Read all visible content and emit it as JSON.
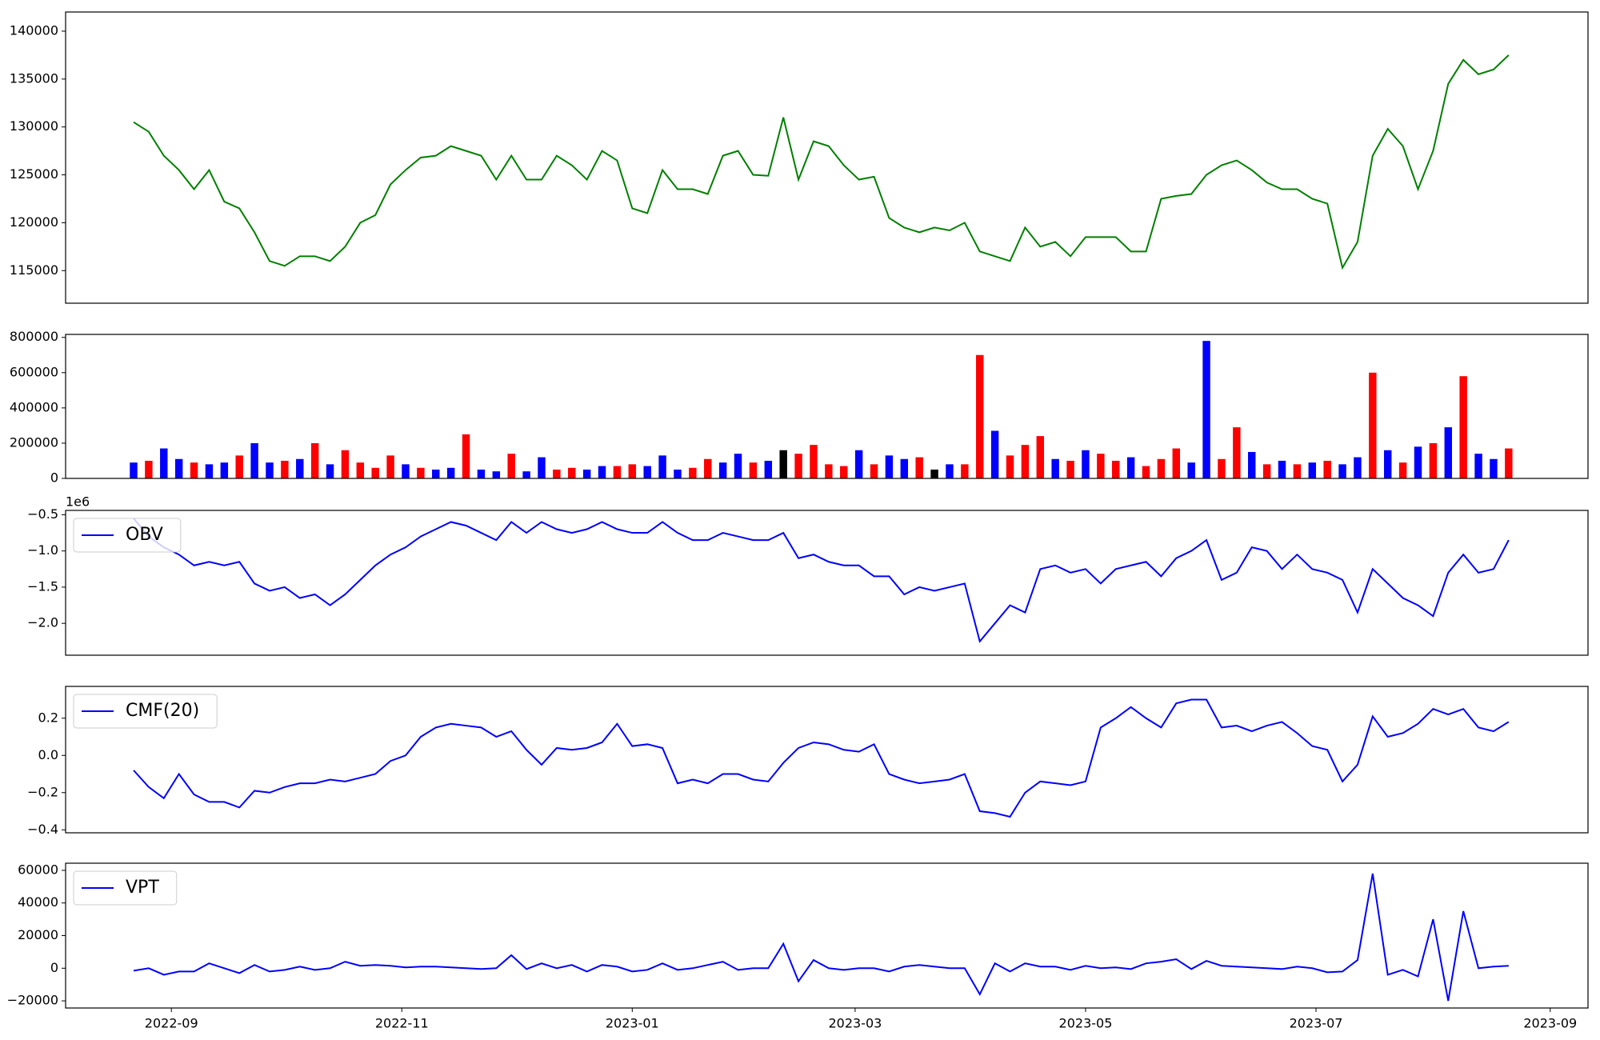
{
  "chart_data": [
    {
      "type": "line",
      "x": [
        "2022-08-22",
        "2022-08-26",
        "2022-08-30",
        "2022-09-03",
        "2022-09-07",
        "2022-09-11",
        "2022-09-15",
        "2022-09-19",
        "2022-09-23",
        "2022-09-27",
        "2022-10-01",
        "2022-10-05",
        "2022-10-09",
        "2022-10-13",
        "2022-10-17",
        "2022-10-21",
        "2022-10-25",
        "2022-10-29",
        "2022-11-02",
        "2022-11-06",
        "2022-11-10",
        "2022-11-14",
        "2022-11-18",
        "2022-11-22",
        "2022-11-26",
        "2022-11-30",
        "2022-12-04",
        "2022-12-08",
        "2022-12-12",
        "2022-12-16",
        "2022-12-20",
        "2022-12-24",
        "2022-12-28",
        "2023-01-01",
        "2023-01-05",
        "2023-01-09",
        "2023-01-13",
        "2023-01-17",
        "2023-01-21",
        "2023-01-25",
        "2023-01-29",
        "2023-02-02",
        "2023-02-06",
        "2023-02-10",
        "2023-02-14",
        "2023-02-18",
        "2023-02-22",
        "2023-02-26",
        "2023-03-02",
        "2023-03-06",
        "2023-03-10",
        "2023-03-14",
        "2023-03-18",
        "2023-03-22",
        "2023-03-26",
        "2023-03-30",
        "2023-04-03",
        "2023-04-07",
        "2023-04-11",
        "2023-04-15",
        "2023-04-19",
        "2023-04-23",
        "2023-04-27",
        "2023-05-01",
        "2023-05-05",
        "2023-05-09",
        "2023-05-13",
        "2023-05-17",
        "2023-05-21",
        "2023-05-25",
        "2023-05-29",
        "2023-06-02",
        "2023-06-06",
        "2023-06-10",
        "2023-06-14",
        "2023-06-18",
        "2023-06-22",
        "2023-06-26",
        "2023-06-30",
        "2023-07-04",
        "2023-07-08",
        "2023-07-12",
        "2023-07-16",
        "2023-07-20",
        "2023-07-24",
        "2023-07-28",
        "2023-08-01",
        "2023-08-05",
        "2023-08-09",
        "2023-08-13",
        "2023-08-17",
        "2023-08-21"
      ],
      "xlim": [
        "2022-08-04",
        "2023-09-11"
      ],
      "series": [
        {
          "color": "green",
          "values": [
            130500,
            129500,
            127000,
            125500,
            123500,
            125500,
            122200,
            121500,
            119000,
            116000,
            115500,
            116500,
            116500,
            116000,
            117500,
            120000,
            120800,
            124000,
            125500,
            126800,
            127000,
            128000,
            127500,
            127000,
            124500,
            127000,
            124500,
            124500,
            127000,
            126000,
            124500,
            127500,
            126500,
            121500,
            121000,
            125500,
            123500,
            123500,
            123000,
            127000,
            127500,
            125000,
            124900,
            131000,
            124500,
            128500,
            128000,
            126000,
            124500,
            124800,
            120500,
            119500,
            119000,
            119500,
            119200,
            120000,
            117000,
            116500,
            116000,
            119500,
            117500,
            118000,
            116500,
            118500,
            118500,
            118500,
            117000,
            117000,
            122500,
            122800,
            123000,
            125000,
            126000,
            126500,
            125500,
            124200,
            123500,
            123500,
            122500,
            122000,
            115300,
            118000,
            127000,
            129800,
            128000,
            123500,
            127500,
            134500,
            137000,
            135500,
            136000,
            137500
          ]
        }
      ],
      "ylim": [
        111600,
        142000
      ],
      "yticks": [
        115000,
        120000,
        125000,
        130000,
        135000,
        140000
      ]
    },
    {
      "type": "bar",
      "values": [
        90000,
        100000,
        170000,
        110000,
        90000,
        80000,
        90000,
        130000,
        200000,
        90000,
        100000,
        110000,
        200000,
        80000,
        160000,
        90000,
        60000,
        130000,
        80000,
        60000,
        50000,
        60000,
        250000,
        50000,
        40000,
        140000,
        40000,
        120000,
        50000,
        60000,
        50000,
        70000,
        70000,
        80000,
        70000,
        130000,
        50000,
        60000,
        110000,
        90000,
        140000,
        90000,
        100000,
        160000,
        140000,
        190000,
        80000,
        70000,
        160000,
        80000,
        130000,
        110000,
        120000,
        50000,
        80000,
        80000,
        700000,
        270000,
        130000,
        190000,
        240000,
        110000,
        100000,
        160000,
        140000,
        100000,
        120000,
        70000,
        110000,
        170000,
        90000,
        780000,
        110000,
        290000,
        150000,
        80000,
        100000,
        80000,
        90000,
        100000,
        80000,
        120000,
        600000,
        160000,
        90000,
        180000,
        200000,
        290000,
        580000,
        140000,
        110000,
        170000
      ],
      "colors": [
        "blue",
        "red",
        "blue",
        "blue",
        "red",
        "blue",
        "blue",
        "red",
        "blue",
        "blue",
        "red",
        "blue",
        "red",
        "blue",
        "red",
        "red",
        "red",
        "red",
        "blue",
        "red",
        "blue",
        "blue",
        "red",
        "blue",
        "blue",
        "red",
        "blue",
        "blue",
        "red",
        "red",
        "blue",
        "blue",
        "red",
        "red",
        "blue",
        "blue",
        "blue",
        "red",
        "red",
        "blue",
        "blue",
        "red",
        "blue",
        "black",
        "red",
        "red",
        "red",
        "red",
        "blue",
        "red",
        "blue",
        "blue",
        "red",
        "black",
        "blue",
        "red",
        "red",
        "blue",
        "red",
        "red",
        "red",
        "blue",
        "red",
        "blue",
        "red",
        "red",
        "blue",
        "red",
        "red",
        "red",
        "blue",
        "blue",
        "red",
        "red",
        "blue",
        "red",
        "blue",
        "red",
        "blue",
        "red",
        "blue",
        "blue",
        "red",
        "blue",
        "red",
        "blue",
        "red",
        "blue",
        "red",
        "blue",
        "blue",
        "red"
      ],
      "ylim": [
        0,
        817000
      ],
      "yticks": [
        0,
        200000,
        400000,
        600000,
        800000
      ]
    },
    {
      "type": "line",
      "series": [
        {
          "name": "OBV",
          "color": "blue",
          "values": [
            -0.55,
            -0.8,
            -0.95,
            -1.05,
            -1.2,
            -1.15,
            -1.2,
            -1.15,
            -1.45,
            -1.55,
            -1.5,
            -1.65,
            -1.6,
            -1.75,
            -1.6,
            -1.4,
            -1.2,
            -1.05,
            -0.95,
            -0.8,
            -0.7,
            -0.6,
            -0.65,
            -0.75,
            -0.85,
            -0.6,
            -0.75,
            -0.6,
            -0.7,
            -0.75,
            -0.7,
            -0.6,
            -0.7,
            -0.75,
            -0.75,
            -0.6,
            -0.75,
            -0.85,
            -0.85,
            -0.75,
            -0.8,
            -0.85,
            -0.85,
            -0.75,
            -1.1,
            -1.05,
            -1.15,
            -1.2,
            -1.2,
            -1.35,
            -1.35,
            -1.6,
            -1.5,
            -1.55,
            -1.5,
            -1.45,
            -2.25,
            -2.0,
            -1.75,
            -1.85,
            -1.25,
            -1.2,
            -1.3,
            -1.25,
            -1.45,
            -1.25,
            -1.2,
            -1.15,
            -1.35,
            -1.1,
            -1.0,
            -0.85,
            -1.4,
            -1.3,
            -0.95,
            -1.0,
            -1.25,
            -1.05,
            -1.25,
            -1.3,
            -1.4,
            -1.85,
            -1.25,
            -1.45,
            -1.65,
            -1.75,
            -1.9,
            -1.3,
            -1.05,
            -1.3,
            -1.25,
            -0.85
          ]
        }
      ],
      "ylim": [
        -2.44,
        -0.44
      ],
      "yticks": [
        {
          "value": -2.0,
          "label": "−2.0"
        },
        {
          "value": -1.5,
          "label": "−1.5"
        },
        {
          "value": -1.0,
          "label": "−1.0"
        },
        {
          "value": -0.5,
          "label": "−0.5"
        }
      ],
      "y_offset_label": "1e6",
      "legend": "upper left"
    },
    {
      "type": "line",
      "series": [
        {
          "name": "CMF(20)",
          "color": "blue",
          "values": [
            -0.08,
            -0.17,
            -0.23,
            -0.1,
            -0.21,
            -0.25,
            -0.25,
            -0.28,
            -0.19,
            -0.2,
            -0.17,
            -0.15,
            -0.15,
            -0.13,
            -0.14,
            -0.12,
            -0.1,
            -0.03,
            0.0,
            0.1,
            0.15,
            0.17,
            0.16,
            0.15,
            0.1,
            0.13,
            0.03,
            -0.05,
            0.04,
            0.03,
            0.04,
            0.07,
            0.17,
            0.05,
            0.06,
            0.04,
            -0.15,
            -0.13,
            -0.15,
            -0.1,
            -0.1,
            -0.13,
            -0.14,
            -0.04,
            0.04,
            0.07,
            0.06,
            0.03,
            0.02,
            0.06,
            -0.1,
            -0.13,
            -0.15,
            -0.14,
            -0.13,
            -0.1,
            -0.3,
            -0.31,
            -0.33,
            -0.2,
            -0.14,
            -0.15,
            -0.16,
            -0.14,
            0.15,
            0.2,
            0.26,
            0.2,
            0.15,
            0.28,
            0.3,
            0.3,
            0.15,
            0.16,
            0.13,
            0.16,
            0.18,
            0.12,
            0.05,
            0.03,
            -0.14,
            -0.05,
            0.21,
            0.1,
            0.12,
            0.17,
            0.25,
            0.22,
            0.25,
            0.15,
            0.13,
            0.18
          ]
        }
      ],
      "ylim": [
        -0.416,
        0.371
      ],
      "yticks": [
        {
          "value": -0.4,
          "label": "−0.4"
        },
        {
          "value": -0.2,
          "label": "−0.2"
        },
        {
          "value": 0,
          "label": "0.0"
        },
        0.2
      ],
      "legend": "upper left"
    },
    {
      "type": "line",
      "series": [
        {
          "name": "VPT",
          "color": "blue",
          "values": [
            -1500,
            0,
            -4000,
            -2000,
            -2000,
            3000,
            0,
            -3000,
            2000,
            -2000,
            -1000,
            1000,
            -1000,
            0,
            4000,
            1500,
            2000,
            1500,
            500,
            1000,
            1000,
            500,
            0,
            -500,
            0,
            8000,
            -500,
            3000,
            0,
            2000,
            -2000,
            2000,
            1000,
            -2000,
            -1000,
            3000,
            -1000,
            0,
            2000,
            4000,
            -1000,
            0,
            0,
            15000,
            -8000,
            5000,
            0,
            -1000,
            0,
            0,
            -2000,
            1000,
            2000,
            1000,
            0,
            0,
            -16000,
            3000,
            -2000,
            3000,
            1000,
            1000,
            -1000,
            1500,
            0,
            500,
            -500,
            3000,
            4000,
            5500,
            -500,
            4500,
            1500,
            1000,
            500,
            0,
            -500,
            1000,
            0,
            -2500,
            -2000,
            5000,
            58000,
            -4000,
            -1000,
            -5000,
            30000,
            -20000,
            35000,
            0,
            1000,
            1500
          ]
        }
      ],
      "ylim": [
        -24375,
        64375
      ],
      "yticks": [
        {
          "value": -20000,
          "label": "−20000"
        },
        0,
        20000,
        40000,
        60000
      ],
      "legend": "upper left",
      "xticks": [
        {
          "value": "2022-09-01",
          "label": "2022-09"
        },
        {
          "value": "2022-11-01",
          "label": "2022-11"
        },
        {
          "value": "2023-01-01",
          "label": "2023-01"
        },
        {
          "value": "2023-03-01",
          "label": "2023-03"
        },
        {
          "value": "2023-05-01",
          "label": "2023-05"
        },
        {
          "value": "2023-07-01",
          "label": "2023-07"
        },
        {
          "value": "2023-09-01",
          "label": "2023-09"
        }
      ]
    }
  ]
}
